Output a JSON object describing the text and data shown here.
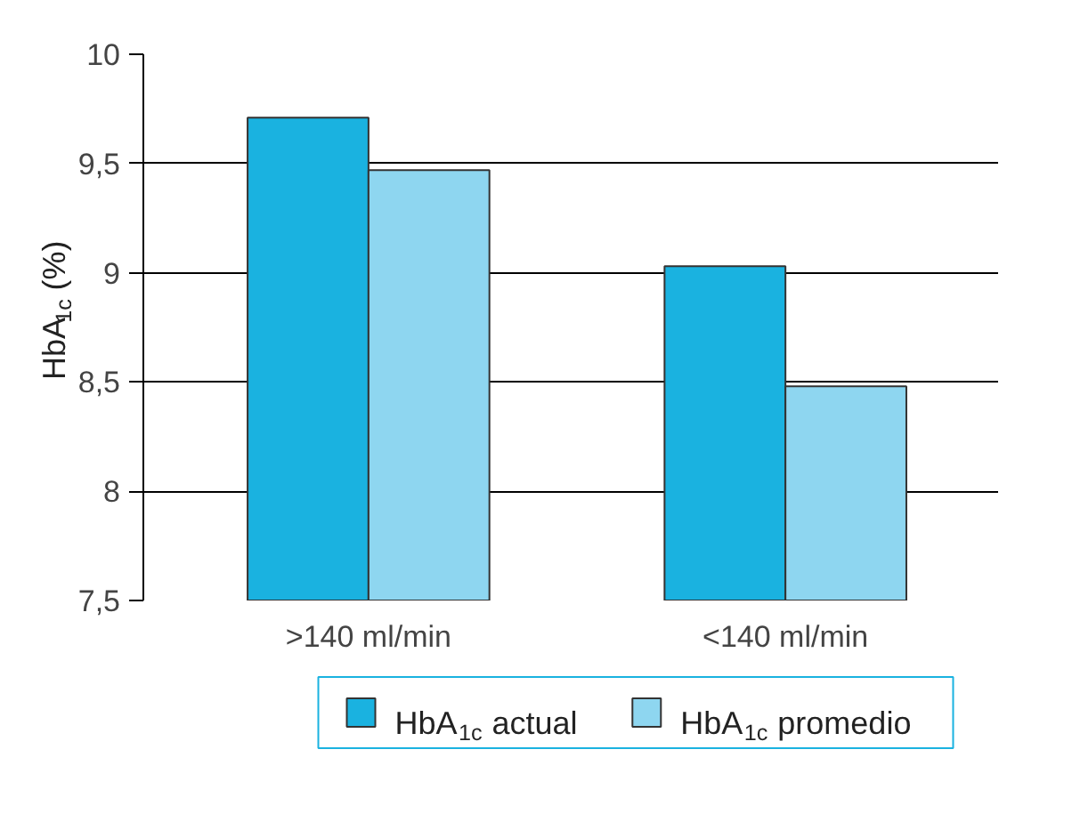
{
  "chart_data": {
    "type": "bar",
    "ylabel": "HbA$_{1c}$ (%)",
    "categories": [
      ">140 ml/min",
      "<140 ml/min"
    ],
    "series": [
      {
        "name": "HbA$_{1c}$ actual",
        "color": "#1ab2e0",
        "values": [
          9.71,
          9.03
        ]
      },
      {
        "name": "HbA$_{1c}$ promedio",
        "color": "#8ed6f0",
        "values": [
          9.47,
          8.48
        ]
      }
    ],
    "ylim": [
      7.5,
      10
    ],
    "yticks": [
      {
        "value": 7.5,
        "label": "7,5"
      },
      8,
      {
        "value": 8.5,
        "label": "8,5"
      },
      9,
      {
        "value": 9.5,
        "label": "9,5"
      },
      10
    ],
    "grid": "y",
    "legend": "bottom"
  }
}
